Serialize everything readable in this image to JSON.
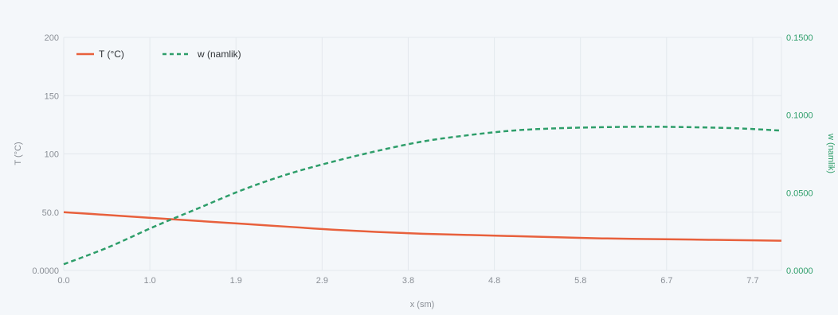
{
  "chart_data": {
    "type": "line",
    "title": "",
    "xlabel": "x (sm)",
    "ylabel": "T (°C)",
    "y2label": "w (namlik)",
    "xlim": [
      0,
      8.0
    ],
    "ylim": [
      0,
      200
    ],
    "y2lim": [
      0,
      0.15
    ],
    "x_ticks": [
      "0.0",
      "1.0",
      "1.9",
      "2.9",
      "3.8",
      "4.8",
      "5.8",
      "6.7",
      "7.7"
    ],
    "x_tick_values": [
      0.0,
      0.96,
      1.92,
      2.88,
      3.84,
      4.8,
      5.76,
      6.72,
      7.68
    ],
    "y_ticks": [
      "0.0000",
      "50.0",
      "100",
      "150",
      "200"
    ],
    "y_tick_values": [
      0,
      50,
      100,
      150,
      200
    ],
    "y2_ticks": [
      "0.0000",
      "0.0500",
      "0.1000",
      "0.1500"
    ],
    "y2_tick_values": [
      0,
      0.05,
      0.1,
      0.15
    ],
    "grid": true,
    "legend_position": "top-left",
    "series": [
      {
        "name": "T (°C)",
        "axis": "left",
        "style": "solid",
        "color": "#e8603c",
        "x": [
          0,
          0.5,
          1.0,
          1.5,
          2.0,
          2.5,
          3.0,
          3.5,
          4.0,
          4.5,
          5.0,
          5.5,
          6.0,
          6.5,
          7.0,
          7.5,
          8.0
        ],
        "y": [
          50,
          47.5,
          45,
          42.5,
          40,
          37.5,
          35,
          33,
          31.5,
          30.5,
          29.5,
          28.5,
          27.5,
          27,
          26.5,
          26,
          25.5
        ]
      },
      {
        "name": "w (namlik)",
        "axis": "right",
        "style": "dashed",
        "color": "#2e9e6a",
        "x": [
          0,
          0.5,
          1.0,
          1.5,
          2.0,
          2.5,
          3.0,
          3.5,
          4.0,
          4.5,
          5.0,
          5.5,
          6.0,
          6.5,
          7.0,
          7.5,
          8.0
        ],
        "y": [
          0.004,
          0.015,
          0.028,
          0.04,
          0.052,
          0.062,
          0.07,
          0.077,
          0.083,
          0.087,
          0.09,
          0.0915,
          0.0922,
          0.0925,
          0.0922,
          0.0915,
          0.09
        ]
      }
    ]
  }
}
